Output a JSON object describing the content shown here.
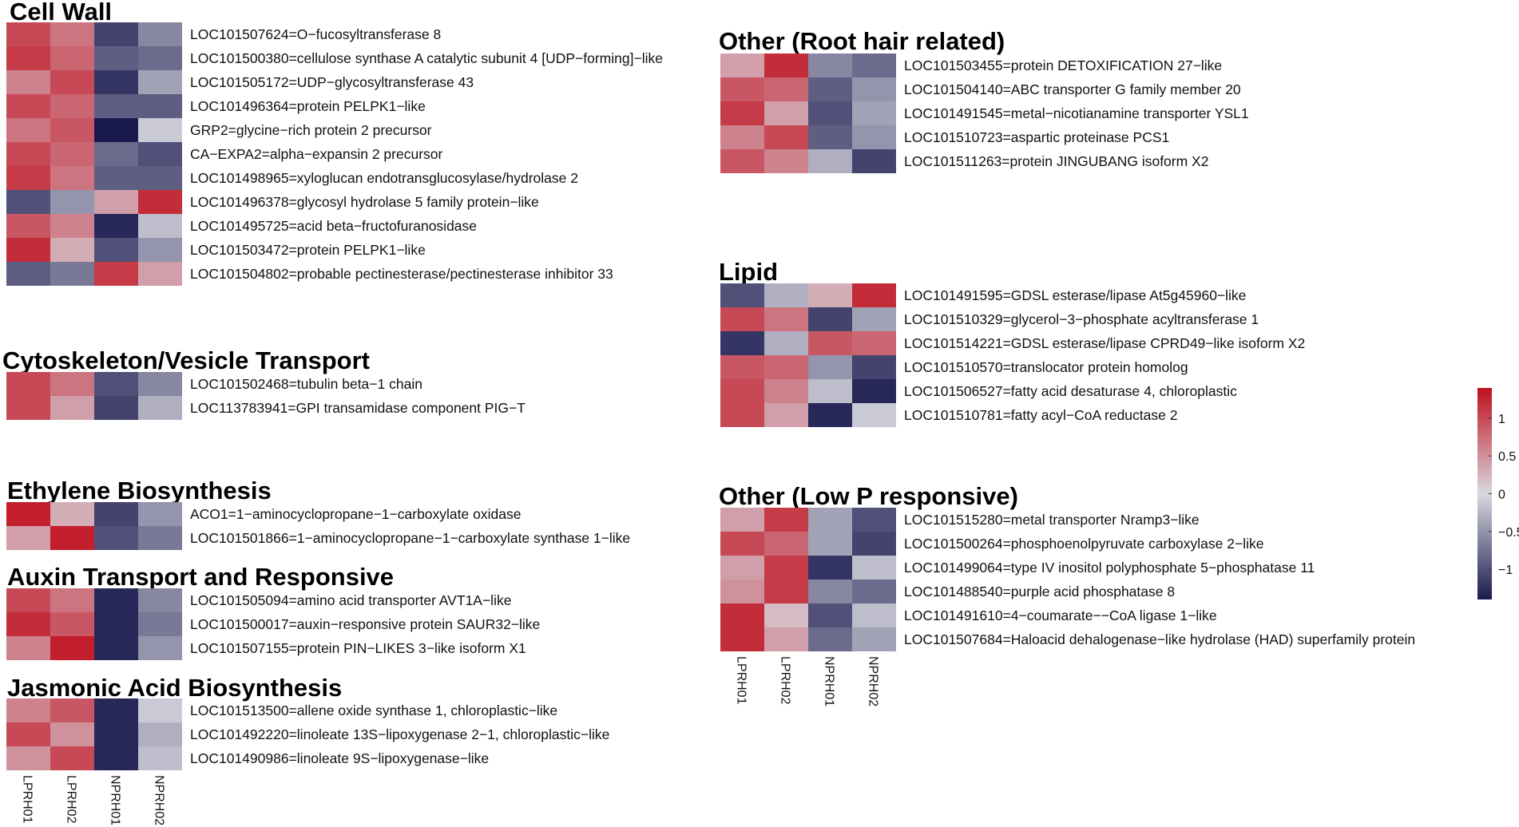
{
  "chart_data": [
    {
      "type": "heatmap",
      "title": "Cell Wall",
      "columns": [
        "LPRH01",
        "LPRH02",
        "NPRH01",
        "NPRH02"
      ],
      "show_column_labels": false,
      "rows": [
        {
          "label": "LOC101507624=O−fucosyltransferase 8",
          "values": [
            1.0,
            0.7,
            -1.1,
            -0.6
          ]
        },
        {
          "label": "LOC101500380=cellulose synthase A catalytic subunit 4 [UDP−forming]−like",
          "values": [
            1.1,
            0.8,
            -0.9,
            -0.8
          ]
        },
        {
          "label": "LOC101505172=UDP−glycosyltransferase 43",
          "values": [
            0.6,
            1.0,
            -1.2,
            -0.4
          ]
        },
        {
          "label": "LOC101496364=protein PELPK1−like",
          "values": [
            1.0,
            0.8,
            -0.9,
            -0.9
          ]
        },
        {
          "label": "GRP2=glycine−rich protein 2 precursor",
          "values": [
            0.7,
            0.9,
            -1.4,
            -0.1
          ]
        },
        {
          "label": "CA−EXPA2=alpha−expansin 2 precursor",
          "values": [
            1.0,
            0.8,
            -0.8,
            -1.0
          ]
        },
        {
          "label": "LOC101498965=xyloglucan endotransglucosylase/hydrolase 2",
          "values": [
            1.1,
            0.7,
            -0.9,
            -0.9
          ]
        },
        {
          "label": "LOC101496378=glycosyl hydrolase 5 family protein−like",
          "values": [
            -1.0,
            -0.5,
            0.4,
            1.2
          ]
        },
        {
          "label": "LOC101495725=acid beta−fructofuranosidase",
          "values": [
            0.9,
            0.6,
            -1.3,
            -0.2
          ]
        },
        {
          "label": "LOC101503472=protein PELPK1−like",
          "values": [
            1.2,
            0.3,
            -1.0,
            -0.5
          ]
        },
        {
          "label": "LOC101504802=probable pectinesterase/pectinesterase inhibitor 33",
          "values": [
            -0.9,
            -0.7,
            1.1,
            0.4
          ]
        }
      ]
    },
    {
      "type": "heatmap",
      "title": "Cytoskeleton/Vesicle Transport",
      "columns": [
        "LPRH01",
        "LPRH02",
        "NPRH01",
        "NPRH02"
      ],
      "show_column_labels": false,
      "rows": [
        {
          "label": "LOC101502468=tubulin beta−1 chain",
          "values": [
            1.0,
            0.7,
            -1.0,
            -0.6
          ]
        },
        {
          "label": "LOC113783941=GPI transamidase component PIG−T",
          "values": [
            1.0,
            0.4,
            -1.1,
            -0.3
          ]
        }
      ]
    },
    {
      "type": "heatmap",
      "title": "Ethylene Biosynthesis",
      "columns": [
        "LPRH01",
        "LPRH02",
        "NPRH01",
        "NPRH02"
      ],
      "show_column_labels": false,
      "rows": [
        {
          "label": "ACO1=1−aminocyclopropane−1−carboxylate oxidase",
          "values": [
            1.3,
            0.3,
            -1.1,
            -0.5
          ]
        },
        {
          "label": "LOC101501866=1−aminocyclopropane−1−carboxylate synthase 1−like",
          "values": [
            0.4,
            1.3,
            -1.0,
            -0.7
          ]
        }
      ]
    },
    {
      "type": "heatmap",
      "title": "Auxin Transport and Responsive",
      "columns": [
        "LPRH01",
        "LPRH02",
        "NPRH01",
        "NPRH02"
      ],
      "show_column_labels": false,
      "rows": [
        {
          "label": "LOC101505094=amino acid transporter AVT1A−like",
          "values": [
            1.0,
            0.7,
            -1.3,
            -0.6
          ]
        },
        {
          "label": "LOC101500017=auxin−responsive protein SAUR32−like",
          "values": [
            1.2,
            0.9,
            -1.3,
            -0.7
          ]
        },
        {
          "label": "LOC101507155=protein PIN−LIKES 3−like isoform X1",
          "values": [
            0.6,
            1.3,
            -1.3,
            -0.5
          ]
        }
      ]
    },
    {
      "type": "heatmap",
      "title": "Jasmonic Acid Biosynthesis",
      "columns": [
        "LPRH01",
        "LPRH02",
        "NPRH01",
        "NPRH02"
      ],
      "show_column_labels": true,
      "rows": [
        {
          "label": "LOC101513500=allene oxide synthase 1, chloroplastic−like",
          "values": [
            0.6,
            0.9,
            -1.3,
            -0.1
          ]
        },
        {
          "label": "LOC101492220=linoleate 13S−lipoxygenase 2−1, chloroplastic−like",
          "values": [
            1.0,
            0.5,
            -1.3,
            -0.3
          ]
        },
        {
          "label": "LOC101490986=linoleate 9S−lipoxygenase−like",
          "values": [
            0.5,
            1.0,
            -1.3,
            -0.2
          ]
        }
      ]
    },
    {
      "type": "heatmap",
      "title": "Other (Root hair related)",
      "columns": [
        "LPRH01",
        "LPRH02",
        "NPRH01",
        "NPRH02"
      ],
      "show_column_labels": false,
      "rows": [
        {
          "label": "LOC101503455=protein DETOXIFICATION 27−like",
          "values": [
            0.4,
            1.2,
            -0.6,
            -0.8
          ]
        },
        {
          "label": "LOC101504140=ABC transporter G family member 20",
          "values": [
            0.9,
            0.8,
            -0.9,
            -0.5
          ]
        },
        {
          "label": "LOC101491545=metal−nicotianamine transporter YSL1",
          "values": [
            1.1,
            0.4,
            -1.0,
            -0.4
          ]
        },
        {
          "label": "LOC101510723=aspartic proteinase PCS1",
          "values": [
            0.6,
            1.0,
            -0.9,
            -0.5
          ]
        },
        {
          "label": "LOC101511263=protein JINGUBANG isoform X2",
          "values": [
            0.9,
            0.6,
            -0.3,
            -1.1
          ]
        }
      ]
    },
    {
      "type": "heatmap",
      "title": "Lipid",
      "columns": [
        "LPRH01",
        "LPRH02",
        "NPRH01",
        "NPRH02"
      ],
      "show_column_labels": false,
      "rows": [
        {
          "label": "LOC101491595=GDSL esterase/lipase At5g45960−like",
          "values": [
            -1.0,
            -0.3,
            0.3,
            1.2
          ]
        },
        {
          "label": "LOC101510329=glycerol−3−phosphate acyltransferase 1",
          "values": [
            1.0,
            0.7,
            -1.1,
            -0.4
          ]
        },
        {
          "label": "LOC101514221=GDSL esterase/lipase CPRD49−like isoform X2",
          "values": [
            -1.2,
            -0.3,
            0.9,
            0.8
          ]
        },
        {
          "label": "LOC101510570=translocator protein homolog",
          "values": [
            0.9,
            0.8,
            -0.5,
            -1.1
          ]
        },
        {
          "label": "LOC101506527=fatty acid desaturase 4, chloroplastic",
          "values": [
            1.0,
            0.6,
            -0.2,
            -1.3
          ]
        },
        {
          "label": "LOC101510781=fatty acyl−CoA reductase 2",
          "values": [
            1.0,
            0.4,
            -1.3,
            -0.1
          ]
        }
      ]
    },
    {
      "type": "heatmap",
      "title": "Other (Low P responsive)",
      "columns": [
        "LPRH01",
        "LPRH02",
        "NPRH01",
        "NPRH02"
      ],
      "show_column_labels": true,
      "rows": [
        {
          "label": "LOC101515280=metal transporter Nramp3−like",
          "values": [
            0.4,
            1.1,
            -0.4,
            -1.0
          ]
        },
        {
          "label": "LOC101500264=phosphoenolpyruvate carboxylase 2−like",
          "values": [
            1.0,
            0.8,
            -0.4,
            -1.1
          ]
        },
        {
          "label": "LOC101499064=type IV inositol polyphosphate 5−phosphatase 11",
          "values": [
            0.4,
            1.1,
            -1.2,
            -0.2
          ]
        },
        {
          "label": "LOC101488540=purple acid phosphatase 8",
          "values": [
            0.5,
            1.1,
            -0.6,
            -0.8
          ]
        },
        {
          "label": "LOC101491610=4−coumarate−−CoA ligase 1−like",
          "values": [
            1.2,
            0.2,
            -1.0,
            -0.2
          ]
        },
        {
          "label": "LOC101507684=Haloacid dehalogenase−like hydrolase (HAD) superfamily protein",
          "values": [
            1.2,
            0.4,
            -0.8,
            -0.4
          ]
        }
      ]
    }
  ],
  "legend": {
    "type": "colorbar",
    "ticks": [
      1,
      0.5,
      0,
      -0.5,
      -1
    ],
    "tick_labels": [
      "1",
      "0.5",
      "0",
      "−0.5",
      "−1"
    ],
    "range": [
      -1.4,
      1.4
    ],
    "colors": {
      "low": "#1a1a4e",
      "mid": "#d8d8e0",
      "high": "#c0101e"
    }
  }
}
